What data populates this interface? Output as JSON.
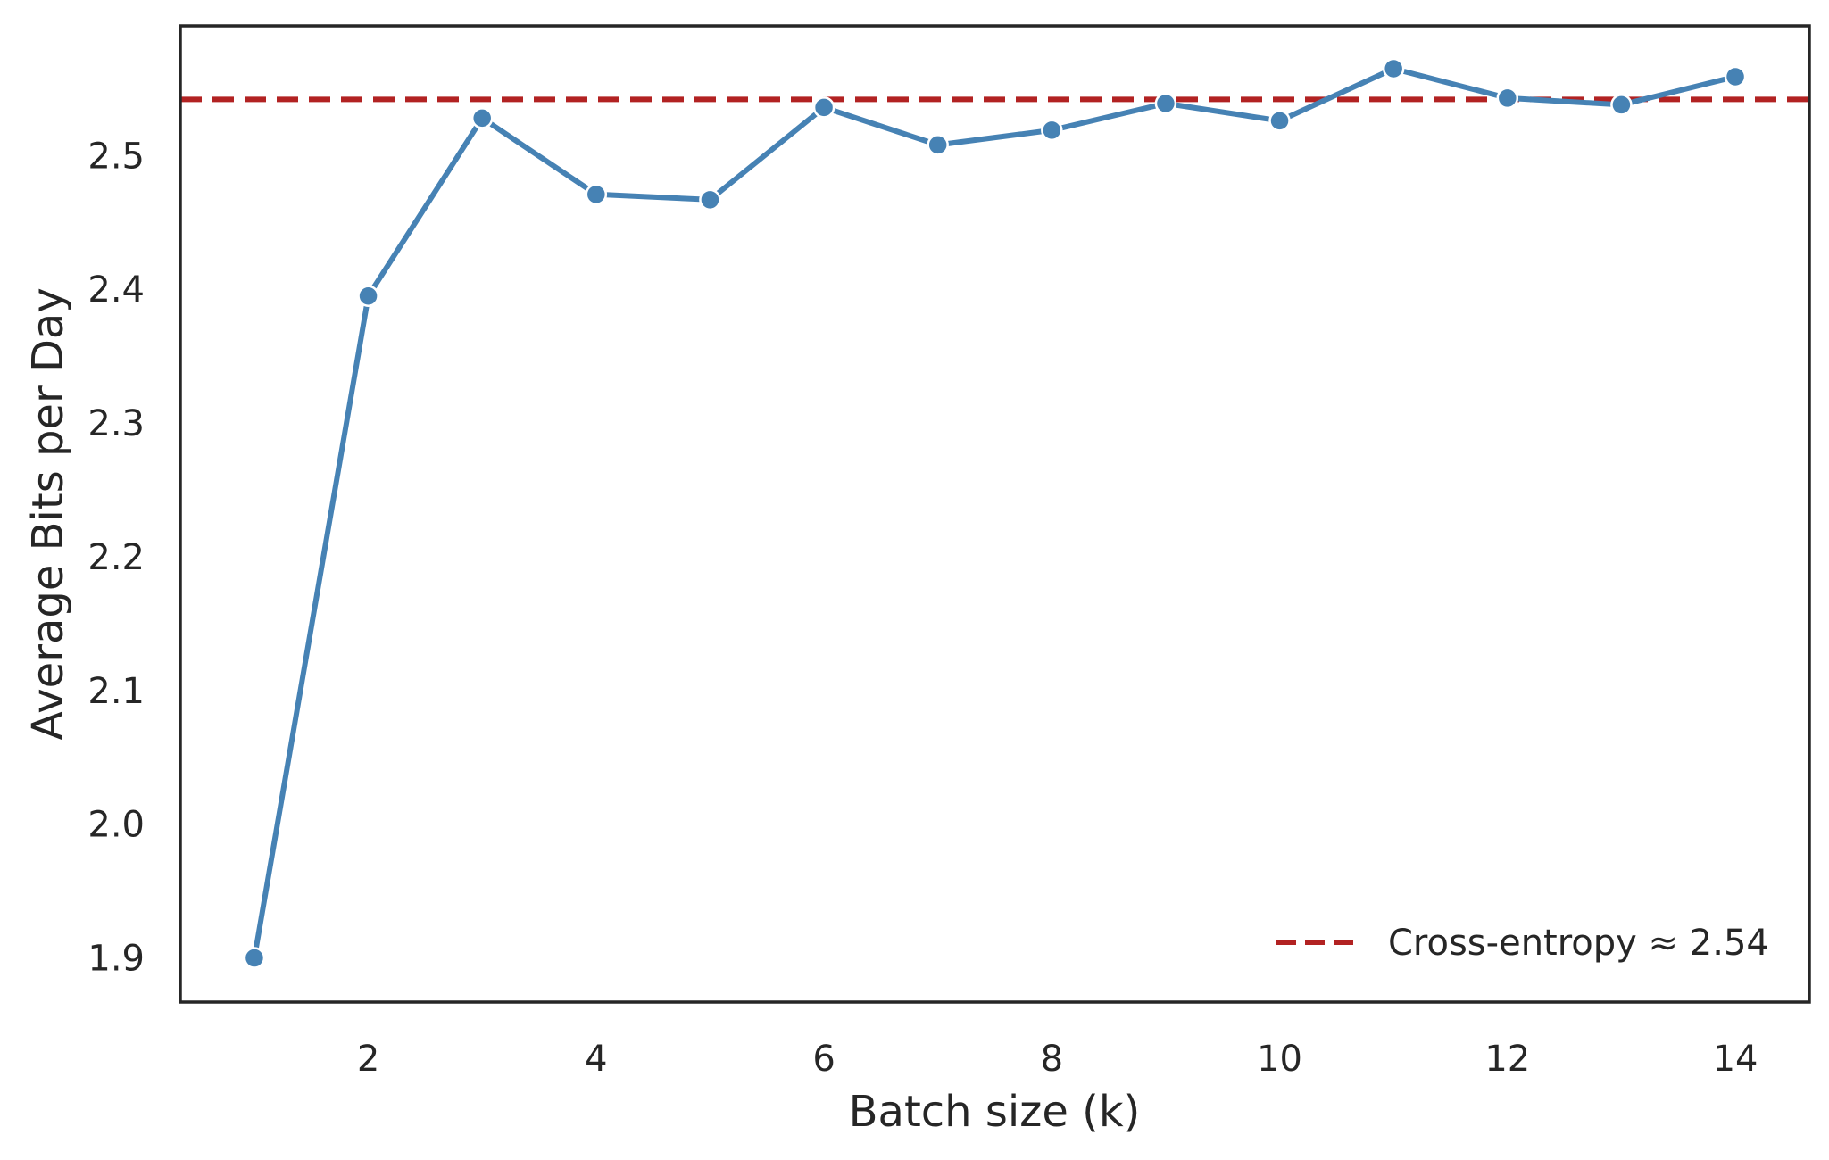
{
  "chart_data": {
    "type": "line",
    "title": "",
    "xlabel": "Batch size (k)",
    "ylabel": "Average Bits per Day",
    "xlim": [
      0.35,
      14.65
    ],
    "ylim": [
      1.867,
      2.597
    ],
    "x_ticks": [
      2,
      4,
      6,
      8,
      10,
      12,
      14
    ],
    "y_ticks": [
      1.9,
      2.0,
      2.1,
      2.2,
      2.3,
      2.4,
      2.5
    ],
    "grid": false,
    "series": [
      {
        "x": [
          1,
          2,
          3,
          4,
          5,
          6,
          7,
          8,
          9,
          10,
          11,
          12,
          13,
          14
        ],
        "values": [
          1.9,
          2.395,
          2.528,
          2.471,
          2.467,
          2.536,
          2.508,
          2.519,
          2.539,
          2.526,
          2.565,
          2.543,
          2.538,
          2.559
        ],
        "color": "#4682B4",
        "marker": "circle"
      }
    ],
    "reference_line": {
      "orientation": "horizontal",
      "value": 2.542,
      "style": "dashed",
      "color": "#B22222",
      "label": "Cross-entropy ≈ 2.54"
    },
    "legend": {
      "placement": "lower-right",
      "entries": [
        "Cross-entropy ≈ 2.54"
      ]
    }
  }
}
